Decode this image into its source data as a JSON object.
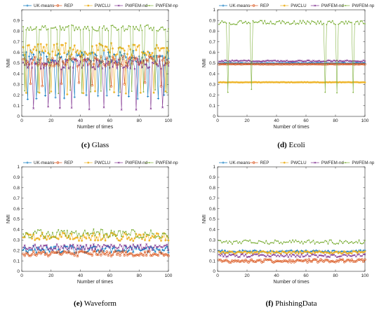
{
  "colors": {
    "UK-means": "#0072BD",
    "REP": "#D95319",
    "PWCLU": "#EDB120",
    "PWFEM-nd": "#7E2F8E",
    "PWFEM-np": "#77AC30"
  },
  "chart_data": [
    {
      "type": "line",
      "caption_letter": "(c)",
      "caption_text": "Glass",
      "xlabel": "Number of times",
      "ylabel": "NMI",
      "xlim": [
        0,
        100
      ],
      "ylim": [
        0,
        1
      ],
      "xticks": [
        "0",
        "20",
        "40",
        "60",
        "80",
        "100"
      ],
      "yticks": [
        "0",
        "0.1",
        "0.2",
        "0.3",
        "0.4",
        "0.5",
        "0.6",
        "0.7",
        "0.8",
        "0.9",
        ""
      ],
      "legend": [
        "UK-means",
        "REP",
        "PWCLU",
        "PWFEM-nd",
        "PWFEM-np"
      ],
      "series": [
        {
          "name": "UK-means",
          "base": 0.56,
          "amp": 0.06,
          "spike_to": 0.18,
          "spikes": [
            4,
            10,
            16,
            23,
            29,
            36,
            44,
            52,
            58,
            66,
            73,
            79,
            86,
            93,
            97
          ]
        },
        {
          "name": "REP",
          "base": 0.52,
          "amp": 0.05,
          "spike_to": 0.3,
          "spikes": [
            6,
            14,
            27,
            39,
            48,
            61,
            70,
            84,
            95
          ]
        },
        {
          "name": "PWCLU",
          "base": 0.63,
          "amp": 0.06,
          "spike_to": 0.22,
          "spikes": [
            3,
            12,
            20,
            31,
            42,
            50,
            63,
            71,
            81,
            90,
            98
          ]
        },
        {
          "name": "PWFEM-nd",
          "base": 0.49,
          "amp": 0.05,
          "spike_to": 0.08,
          "spikes": [
            8,
            18,
            26,
            34,
            46,
            56,
            68,
            78,
            88,
            96
          ]
        },
        {
          "name": "PWFEM-np",
          "base": 0.83,
          "amp": 0.03,
          "spike_to": 0.23,
          "spikes": [
            2,
            11,
            19,
            25,
            33,
            41,
            47,
            54,
            60,
            67,
            75,
            83,
            91,
            99
          ]
        }
      ]
    },
    {
      "type": "line",
      "caption_letter": "(d)",
      "caption_text": "Ecoli",
      "xlabel": "Number of times",
      "ylabel": "NMI",
      "xlim": [
        0,
        100
      ],
      "ylim": [
        0,
        1
      ],
      "xticks": [
        "0",
        "20",
        "40",
        "60",
        "80",
        "100"
      ],
      "yticks": [
        "0",
        "0.1",
        "0.2",
        "0.3",
        "0.4",
        "0.5",
        "0.6",
        "0.7",
        "0.8",
        "0.9",
        "1"
      ],
      "legend": [
        "UK-means",
        "REP",
        "PWCLU",
        "PWFEM-nd",
        "PWFEM-np"
      ],
      "series": [
        {
          "name": "UK-means",
          "base": 0.5,
          "amp": 0.003,
          "spike_to": 0.5,
          "spikes": []
        },
        {
          "name": "REP",
          "base": 0.49,
          "amp": 0.002,
          "spike_to": 0.49,
          "spikes": []
        },
        {
          "name": "PWCLU",
          "base": 0.32,
          "amp": 0.002,
          "spike_to": 0.32,
          "spikes": []
        },
        {
          "name": "PWFEM-nd",
          "base": 0.52,
          "amp": 0.006,
          "spike_to": 0.52,
          "spikes": []
        },
        {
          "name": "PWFEM-np",
          "base": 0.88,
          "amp": 0.02,
          "spike_to": 0.24,
          "spikes": [
            7,
            23,
            73,
            81,
            92
          ]
        }
      ]
    },
    {
      "type": "line",
      "caption_letter": "(e)",
      "caption_text": "Waveform",
      "xlabel": "Number of times",
      "ylabel": "NMI",
      "xlim": [
        0,
        100
      ],
      "ylim": [
        0,
        1
      ],
      "xticks": [
        "0",
        "20",
        "40",
        "60",
        "80",
        "100"
      ],
      "yticks": [
        "0",
        "0.1",
        "0.2",
        "0.3",
        "0.4",
        "0.5",
        "0.6",
        "0.7",
        "0.8",
        "0.9",
        "1"
      ],
      "legend": [
        "UK-means",
        "REP",
        "PWCLU",
        "PWFEM-nd",
        "PWFEM-np"
      ],
      "series": [
        {
          "name": "UK-means",
          "base": 0.21,
          "amp": 0.035,
          "spike_to": 0.21,
          "spikes": []
        },
        {
          "name": "REP",
          "base": 0.17,
          "amp": 0.025,
          "spike_to": 0.17,
          "spikes": []
        },
        {
          "name": "PWCLU",
          "base": 0.33,
          "amp": 0.04,
          "spike_to": 0.33,
          "spikes": []
        },
        {
          "name": "PWFEM-nd",
          "base": 0.23,
          "amp": 0.03,
          "spike_to": 0.23,
          "spikes": []
        },
        {
          "name": "PWFEM-np",
          "base": 0.36,
          "amp": 0.045,
          "spike_to": 0.36,
          "spikes": []
        }
      ]
    },
    {
      "type": "line",
      "caption_letter": "(f)",
      "caption_text": "PhishingData",
      "xlabel": "Number of times",
      "ylabel": "NMI",
      "xlim": [
        0,
        100
      ],
      "ylim": [
        0,
        1
      ],
      "xticks": [
        "0",
        "20",
        "40",
        "60",
        "80",
        "100"
      ],
      "yticks": [
        "0",
        "0.1",
        "0.2",
        "0.3",
        "0.4",
        "0.5",
        "0.6",
        "0.7",
        "0.8",
        "0.9",
        "1"
      ],
      "legend": [
        "UK-means",
        "REP",
        "PWCLU",
        "PWFEM-nd",
        "PWFEM-np"
      ],
      "series": [
        {
          "name": "UK-means",
          "base": 0.19,
          "amp": 0.012,
          "spike_to": 0.19,
          "spikes": []
        },
        {
          "name": "REP",
          "base": 0.1,
          "amp": 0.015,
          "spike_to": 0.1,
          "spikes": []
        },
        {
          "name": "PWCLU",
          "base": 0.18,
          "amp": 0.012,
          "spike_to": 0.18,
          "spikes": []
        },
        {
          "name": "PWFEM-nd",
          "base": 0.15,
          "amp": 0.015,
          "spike_to": 0.15,
          "spikes": []
        },
        {
          "name": "PWFEM-np",
          "base": 0.28,
          "amp": 0.02,
          "spike_to": 0.28,
          "spikes": []
        }
      ]
    }
  ]
}
